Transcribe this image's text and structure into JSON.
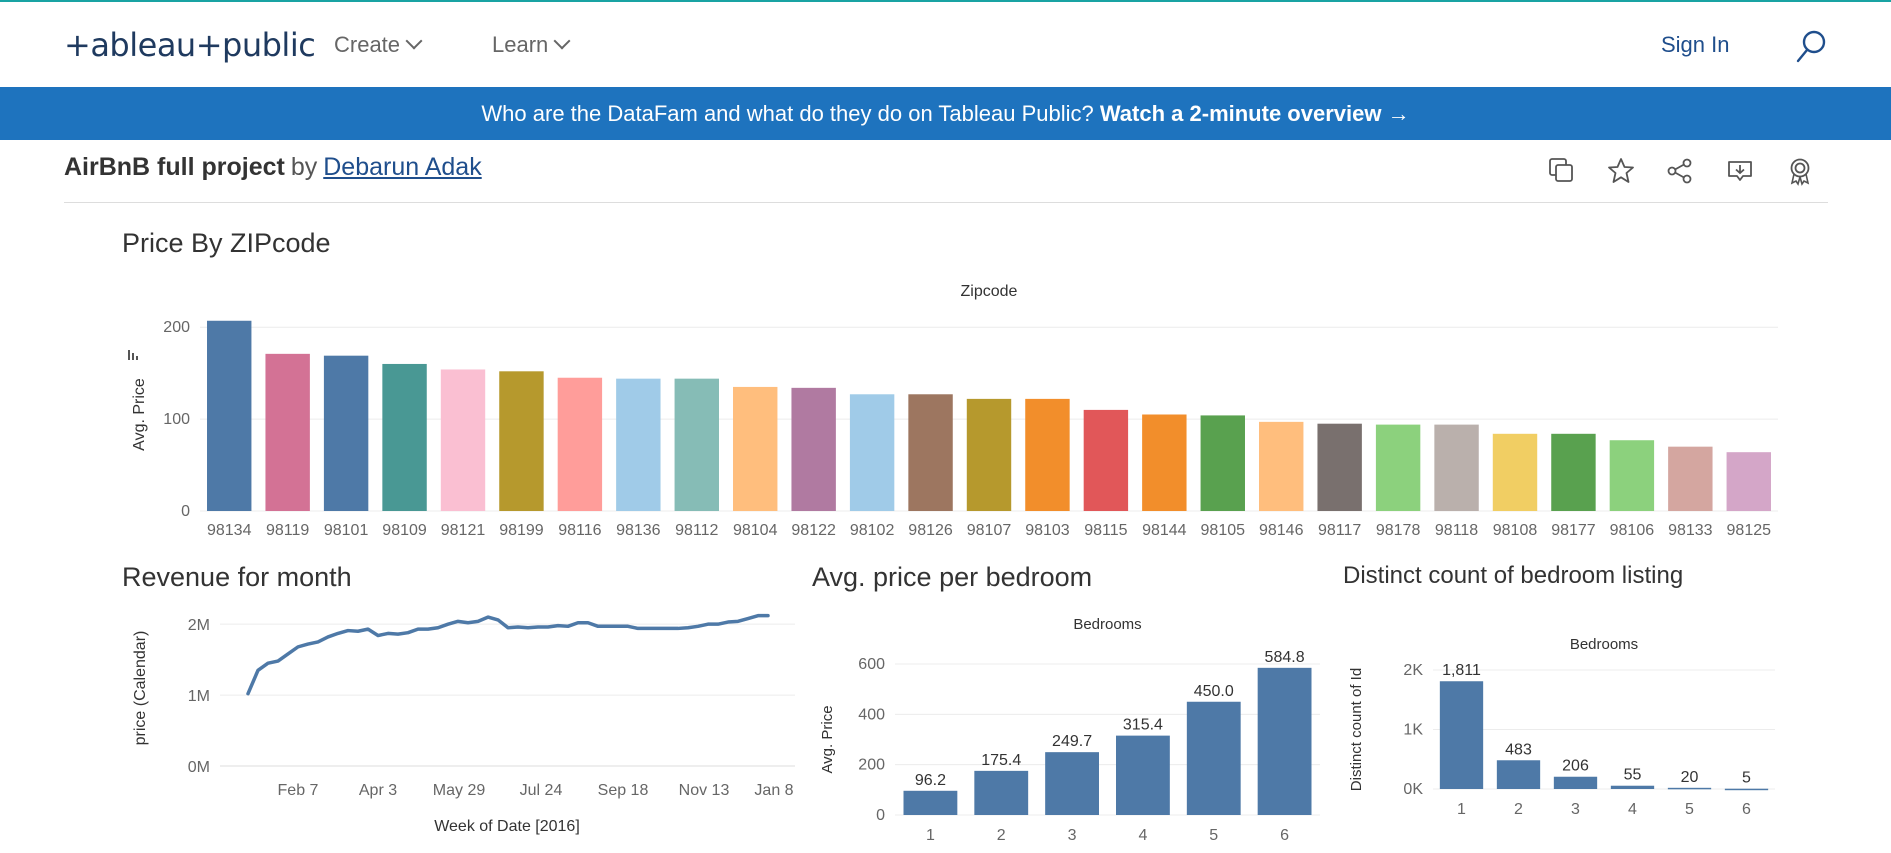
{
  "header": {
    "logo": "+ableau+public",
    "nav": [
      {
        "label": "Create"
      },
      {
        "label": "Learn"
      }
    ],
    "sign_in": "Sign In"
  },
  "banner": {
    "text": "Who are the DataFam and what do they do on Tableau Public?",
    "link": "Watch a 2-minute overview →"
  },
  "viz": {
    "title": "AirBnB full project",
    "by": "by",
    "author": "Debarun Adak"
  },
  "icons": [
    "copy-icon",
    "star-icon",
    "share-icon",
    "download-icon",
    "award-icon"
  ],
  "chart_data": [
    {
      "type": "bar",
      "title": "Price By ZIPcode",
      "xlabel": "Zipcode",
      "ylabel": "Avg. Price",
      "ylim": [
        0,
        210
      ],
      "yticks": [
        "0",
        "100",
        "200"
      ],
      "categories": [
        "98134",
        "98119",
        "98101",
        "98109",
        "98121",
        "98199",
        "98116",
        "98136",
        "98112",
        "98104",
        "98122",
        "98102",
        "98126",
        "98107",
        "98103",
        "98115",
        "98144",
        "98105",
        "98146",
        "98117",
        "98178",
        "98118",
        "98108",
        "98177",
        "98106",
        "98133",
        "98125"
      ],
      "values": [
        207,
        171,
        169,
        160,
        154,
        152,
        145,
        144,
        144,
        135,
        134,
        127,
        127,
        122,
        122,
        110,
        105,
        104,
        97,
        95,
        94,
        94,
        84,
        84,
        77,
        70,
        64
      ],
      "colors": [
        "#4e79a7",
        "#d37295",
        "#4e79a7",
        "#499894",
        "#fabfd2",
        "#b6992d",
        "#ff9d9a",
        "#a0cbe8",
        "#86bcb6",
        "#ffbe7d",
        "#b07aa1",
        "#a0cbe8",
        "#9d7660",
        "#b6992d",
        "#f28e2b",
        "#e15759",
        "#f28e2b",
        "#59a14f",
        "#ffbe7d",
        "#79706e",
        "#8cd17d",
        "#bab0ac",
        "#f1ce63",
        "#59a14f",
        "#8cd17d",
        "#d4a6a0",
        "#d4a6c8"
      ],
      "grid": true
    },
    {
      "type": "line",
      "title": "Revenue  for month",
      "xlabel": "Week of Date [2016]",
      "ylabel": "price (Calendar)",
      "ylim": [
        0,
        2.2
      ],
      "yticks": [
        "0M",
        "1M",
        "2M"
      ],
      "xticks": [
        "Feb 7",
        "Apr 3",
        "May 29",
        "Jul 24",
        "Sep 18",
        "Nov 13",
        "Jan 8"
      ],
      "x": [
        0,
        1,
        2,
        3,
        4,
        5,
        6,
        7,
        8,
        9,
        10,
        11,
        12,
        13,
        14,
        15,
        16,
        17,
        18,
        19,
        20,
        21,
        22,
        23,
        24,
        25,
        26,
        27,
        28,
        29,
        30,
        31,
        32,
        33,
        34,
        35,
        36,
        37,
        38,
        39,
        40,
        41,
        42,
        43,
        44,
        45,
        46,
        47,
        48,
        49,
        50,
        51,
        52
      ],
      "values": [
        1.02,
        1.35,
        1.45,
        1.48,
        1.58,
        1.68,
        1.72,
        1.75,
        1.82,
        1.87,
        1.91,
        1.9,
        1.93,
        1.84,
        1.87,
        1.86,
        1.88,
        1.93,
        1.93,
        1.95,
        2.0,
        2.04,
        2.02,
        2.04,
        2.1,
        2.06,
        1.95,
        1.96,
        1.95,
        1.96,
        1.96,
        1.98,
        1.97,
        2.02,
        2.02,
        1.97,
        1.97,
        1.97,
        1.97,
        1.94,
        1.94,
        1.94,
        1.94,
        1.94,
        1.95,
        1.97,
        2.0,
        2.0,
        2.03,
        2.04,
        2.08,
        2.12,
        2.12
      ],
      "color": "#4e79a7",
      "grid": true
    },
    {
      "type": "bar",
      "title": "Avg. price per bedroom",
      "xlabel": "Bedrooms",
      "ylabel": "Avg. Price",
      "ylim": [
        0,
        600
      ],
      "yticks": [
        "0",
        "200",
        "400",
        "600"
      ],
      "categories": [
        "1",
        "2",
        "3",
        "4",
        "5",
        "6"
      ],
      "values": [
        96.2,
        175.4,
        249.7,
        315.4,
        450.0,
        584.8
      ],
      "labels": [
        "96.2",
        "175.4",
        "249.7",
        "315.4",
        "450.0",
        "584.8"
      ],
      "color": "#4e79a7",
      "grid": true
    },
    {
      "type": "bar",
      "title": "Distinct count of bedroom listing",
      "xlabel": "Bedrooms",
      "ylabel": "Distinct count of Id",
      "ylim": [
        0,
        2000
      ],
      "yticks": [
        "0K",
        "1K",
        "2K"
      ],
      "categories": [
        "1",
        "2",
        "3",
        "4",
        "5",
        "6"
      ],
      "values": [
        1811,
        483,
        206,
        55,
        20,
        5
      ],
      "labels": [
        "1,811",
        "483",
        "206",
        "55",
        "20",
        "5"
      ],
      "color": "#4e79a7",
      "grid": true
    }
  ]
}
